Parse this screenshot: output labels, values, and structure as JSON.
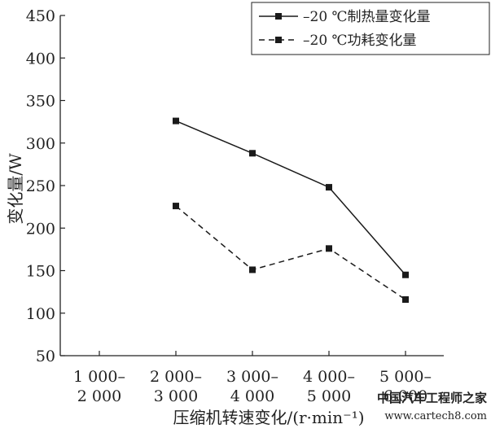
{
  "chart_data": {
    "type": "line",
    "categories": [
      [
        "1 000–",
        "2 000"
      ],
      [
        "2 000–",
        "3 000"
      ],
      [
        "3 000–",
        "4 000"
      ],
      [
        "4 000–",
        "5 000"
      ],
      [
        "5 000–",
        "6 000"
      ]
    ],
    "series": [
      {
        "name": "–20 ℃制热量变化量",
        "style": "solid",
        "values": [
          null,
          326,
          288,
          248,
          145
        ]
      },
      {
        "name": "–20 ℃功耗变化量",
        "style": "dashed",
        "values": [
          null,
          226,
          151,
          176,
          116
        ]
      }
    ],
    "yticks": [
      "50",
      "100",
      "150",
      "200",
      "250",
      "300",
      "350",
      "400",
      "450"
    ],
    "ylim": [
      50,
      450
    ],
    "xlabel": "压缩机转速变化/(r·min⁻¹)",
    "ylabel": "变化量/W",
    "legend_position": "top-right",
    "grid": false,
    "line_color": "#1a1a1a"
  },
  "watermark": {
    "site_name": "中国汽车工程师之家",
    "url": "www.cartech8.com"
  }
}
